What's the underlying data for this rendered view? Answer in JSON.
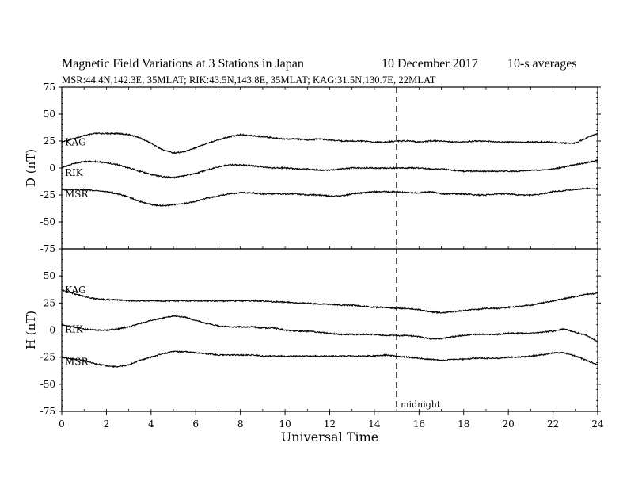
{
  "header": {
    "title": "Magnetic Field Variations at 3 Stations in Japan",
    "date": "10 December 2017",
    "averaging": "10-s averages",
    "stations": "MSR:44.4N,142.3E, 35MLAT;  RIK:43.5N,143.8E, 35MLAT;  KAG:31.5N,130.7E, 22MLAT"
  },
  "chart_data": {
    "type": "line",
    "xlabel": "Universal Time",
    "xlim": [
      0,
      24
    ],
    "x_ticks": [
      0,
      2,
      4,
      6,
      8,
      10,
      12,
      14,
      16,
      18,
      20,
      22,
      24
    ],
    "annotation": {
      "x": 15,
      "label": "midnight",
      "style": "dashed"
    },
    "panels": [
      {
        "ylabel": "D (nT)",
        "ylim": [
          -75,
          75
        ],
        "y_ticks": [
          75,
          50,
          25,
          0,
          -25,
          -50,
          -75
        ],
        "x": [
          0,
          0.5,
          1,
          1.5,
          2,
          2.5,
          3,
          3.5,
          4,
          4.5,
          5,
          5.5,
          6,
          6.5,
          7,
          7.5,
          8,
          8.5,
          9,
          9.5,
          10,
          10.5,
          11,
          11.5,
          12,
          12.5,
          13,
          13.5,
          14,
          14.5,
          15,
          15.5,
          16,
          16.5,
          17,
          17.5,
          18,
          18.5,
          19,
          19.5,
          20,
          20.5,
          21,
          21.5,
          22,
          22.5,
          23,
          23.5,
          24
        ],
        "series": [
          {
            "name": "KAG",
            "values": [
              24,
              27,
              30,
              32,
              32,
              32,
              31,
              28,
              23,
              17,
              14,
              15,
              19,
              23,
              26,
              29,
              31,
              30,
              29,
              28,
              27,
              27,
              26,
              27,
              26,
              25,
              25,
              25,
              24,
              24,
              25,
              25,
              24,
              25,
              25,
              24,
              24,
              25,
              25,
              24,
              24,
              24,
              24,
              24,
              24,
              23,
              23,
              28,
              32
            ]
          },
          {
            "name": "RIK",
            "values": [
              0,
              4,
              6,
              6,
              5,
              3,
              0,
              -3,
              -6,
              -8,
              -9,
              -7,
              -5,
              -2,
              1,
              3,
              3,
              2,
              1,
              0,
              0,
              -1,
              -1,
              -2,
              -2,
              -1,
              0,
              0,
              0,
              0,
              0,
              0,
              0,
              -1,
              -1,
              -2,
              -3,
              -3,
              -3,
              -3,
              -3,
              -3,
              -2,
              -2,
              -1,
              1,
              3,
              5,
              7
            ]
          },
          {
            "name": "MSR",
            "values": [
              -20,
              -20,
              -20,
              -21,
              -22,
              -24,
              -27,
              -31,
              -34,
              -35,
              -34,
              -33,
              -31,
              -28,
              -26,
              -24,
              -23,
              -23,
              -24,
              -24,
              -24,
              -24,
              -25,
              -25,
              -26,
              -26,
              -24,
              -23,
              -22,
              -22,
              -22,
              -23,
              -23,
              -22,
              -24,
              -24,
              -24,
              -25,
              -25,
              -24,
              -24,
              -25,
              -25,
              -24,
              -22,
              -21,
              -20,
              -19,
              -19
            ]
          }
        ]
      },
      {
        "ylabel": "H (nT)",
        "ylim": [
          -75,
          75
        ],
        "y_ticks": [
          75,
          50,
          25,
          0,
          -25,
          -50,
          -75
        ],
        "x": [
          0,
          0.5,
          1,
          1.5,
          2,
          2.5,
          3,
          3.5,
          4,
          4.5,
          5,
          5.5,
          6,
          6.5,
          7,
          7.5,
          8,
          8.5,
          9,
          9.5,
          10,
          10.5,
          11,
          11.5,
          12,
          12.5,
          13,
          13.5,
          14,
          14.5,
          15,
          15.5,
          16,
          16.5,
          17,
          17.5,
          18,
          18.5,
          19,
          19.5,
          20,
          20.5,
          21,
          21.5,
          22,
          22.5,
          23,
          23.5,
          24
        ],
        "series": [
          {
            "name": "KAG",
            "values": [
              37,
              34,
              31,
              29,
              28,
              28,
              27,
              27,
              27,
              27,
              27,
              27,
              27,
              27,
              27,
              27,
              27,
              27,
              27,
              26,
              26,
              25,
              25,
              24,
              24,
              23,
              23,
              22,
              21,
              21,
              20,
              20,
              19,
              17,
              16,
              17,
              18,
              19,
              20,
              20,
              21,
              22,
              23,
              25,
              27,
              29,
              31,
              33,
              34
            ]
          },
          {
            "name": "RIK",
            "values": [
              5,
              3,
              1,
              0,
              0,
              1,
              3,
              6,
              9,
              11,
              13,
              12,
              9,
              6,
              4,
              3,
              3,
              3,
              2,
              2,
              0,
              -1,
              -1,
              -2,
              -3,
              -4,
              -4,
              -4,
              -4,
              -5,
              -5,
              -5,
              -6,
              -8,
              -8,
              -6,
              -5,
              -4,
              -4,
              -4,
              -3,
              -3,
              -3,
              -2,
              -1,
              1,
              -2,
              -5,
              -11
            ]
          },
          {
            "name": "MSR",
            "values": [
              -25,
              -27,
              -28,
              -31,
              -33,
              -34,
              -32,
              -28,
              -25,
              -22,
              -20,
              -20,
              -21,
              -22,
              -23,
              -23,
              -23,
              -23,
              -24,
              -24,
              -24,
              -24,
              -24,
              -24,
              -24,
              -24,
              -24,
              -24,
              -24,
              -23,
              -24,
              -25,
              -26,
              -27,
              -28,
              -27,
              -27,
              -26,
              -26,
              -26,
              -25,
              -25,
              -24,
              -23,
              -21,
              -21,
              -24,
              -28,
              -32
            ]
          }
        ]
      }
    ]
  }
}
